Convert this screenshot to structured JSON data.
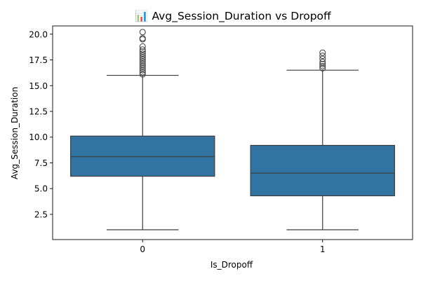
{
  "chart_data": {
    "type": "box",
    "title": "📊 Avg_Session_Duration vs Dropoff",
    "xlabel": "Is_Dropoff",
    "ylabel": "Avg_Session_Duration",
    "categories": [
      "0",
      "1"
    ],
    "ylim": [
      0.05,
      20.8
    ],
    "yticks": [
      2.5,
      5.0,
      7.5,
      10.0,
      12.5,
      15.0,
      17.5,
      20.0
    ],
    "ytick_labels": [
      "2.5",
      "5.0",
      "7.5",
      "10.0",
      "12.5",
      "15.0",
      "17.5",
      "20.0"
    ],
    "grid": false,
    "legend": "none",
    "boxes": [
      {
        "category": "0",
        "whisker_low": 1.0,
        "q1": 6.2,
        "median": 8.1,
        "q3": 10.1,
        "whisker_high": 16.0,
        "outliers": [
          16.1,
          16.3,
          16.5,
          16.7,
          16.9,
          17.1,
          17.3,
          17.5,
          17.7,
          17.9,
          18.1,
          18.3,
          18.5,
          18.8,
          19.5,
          19.6,
          20.2
        ]
      },
      {
        "category": "1",
        "whisker_low": 1.0,
        "q1": 4.3,
        "median": 6.5,
        "q3": 9.2,
        "whisker_high": 16.5,
        "outliers": [
          16.7,
          16.9,
          17.1,
          17.3,
          17.6,
          17.9,
          18.2
        ]
      }
    ],
    "colors": {
      "box_fill": "#3274a1",
      "line": "#3d3d3d",
      "axis": "#000000"
    }
  }
}
